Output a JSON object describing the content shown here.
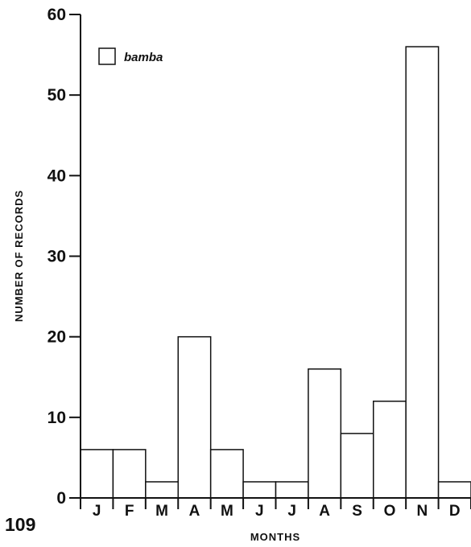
{
  "page_number": "109",
  "chart_data": {
    "type": "bar",
    "categories": [
      "J",
      "F",
      "M",
      "A",
      "M",
      "J",
      "J",
      "A",
      "S",
      "O",
      "N",
      "D"
    ],
    "series": [
      {
        "name": "bamba",
        "values": [
          6,
          6,
          2,
          20,
          6,
          2,
          2,
          16,
          8,
          12,
          56,
          2
        ]
      }
    ],
    "xlabel": "MONTHS",
    "ylabel": "NUMBER OF RECORDS",
    "ylim": [
      0,
      60
    ],
    "yticks": [
      "0",
      "10",
      "20",
      "30",
      "40",
      "50",
      "60"
    ],
    "grid": false,
    "legend_position": "top-left",
    "colors": {
      "bar_fill": "#ffffff",
      "stroke": "#111111"
    }
  }
}
